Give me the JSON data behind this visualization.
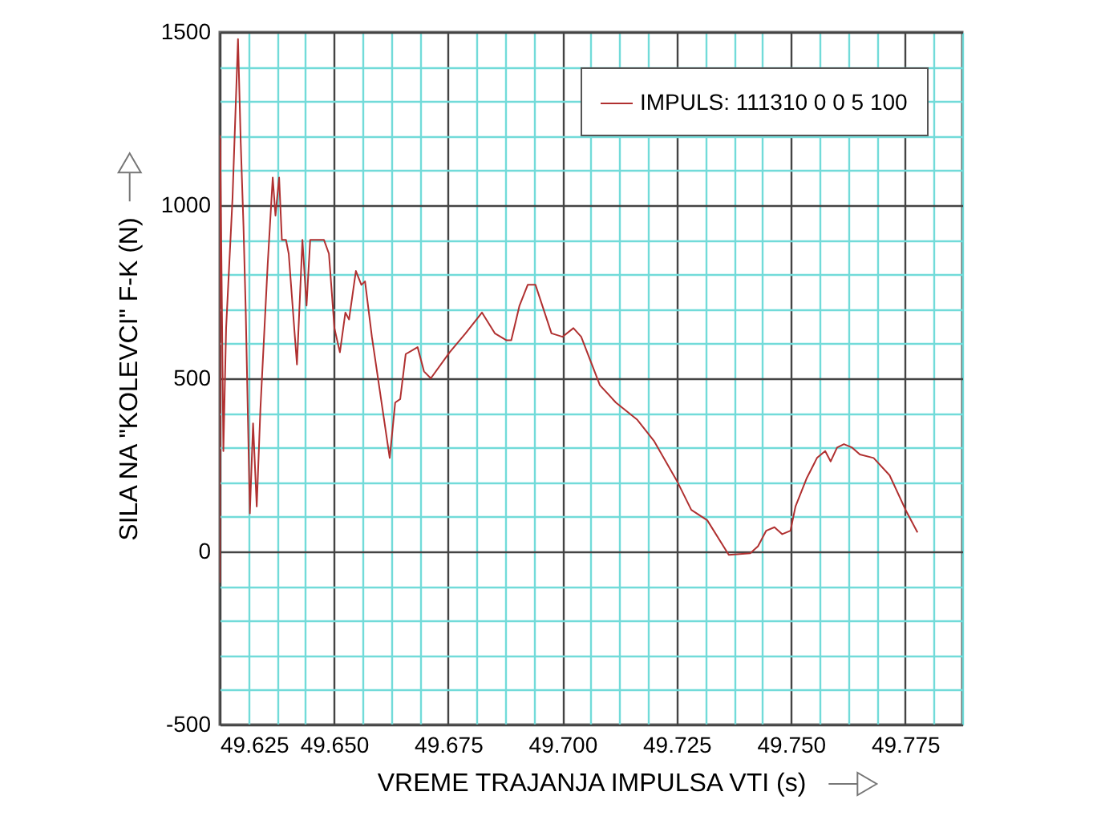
{
  "chart_data": {
    "type": "line",
    "xlabel": "VREME TRAJANJA IMPULSA VTI (s)",
    "ylabel": "SILA NA \"KOLEVCI\" F-K (N)",
    "xlim": [
      49.625,
      49.7875
    ],
    "ylim": [
      -500,
      1500
    ],
    "xticks": [
      49.625,
      {
        "value": 49.63125,
        "label": null
      },
      {
        "value": 49.6375,
        "label": null
      },
      {
        "value": 49.64375,
        "label": null
      },
      {
        "value": 49.65,
        "label": "49.650"
      },
      {
        "value": 49.65625,
        "label": null
      },
      {
        "value": 49.6625,
        "label": null
      },
      {
        "value": 49.66875,
        "label": null
      },
      49.675,
      {
        "value": 49.68125,
        "label": null
      },
      {
        "value": 49.6875,
        "label": null
      },
      {
        "value": 49.69375,
        "label": null
      },
      {
        "value": 49.7,
        "label": "49.700"
      },
      {
        "value": 49.70625,
        "label": null
      },
      {
        "value": 49.7125,
        "label": null
      },
      {
        "value": 49.71875,
        "label": null
      },
      49.725,
      {
        "value": 49.73125,
        "label": null
      },
      {
        "value": 49.7375,
        "label": null
      },
      {
        "value": 49.74375,
        "label": null
      },
      {
        "value": 49.75,
        "label": "49.750"
      },
      {
        "value": 49.75625,
        "label": null
      },
      {
        "value": 49.7625,
        "label": null
      },
      {
        "value": 49.76875,
        "label": null
      },
      49.775,
      {
        "value": 49.78125,
        "label": null
      },
      {
        "value": 49.7875,
        "label": null
      }
    ],
    "yticks": [
      -500,
      {
        "value": -400,
        "label": null
      },
      {
        "value": -300,
        "label": null
      },
      {
        "value": -200,
        "label": null
      },
      {
        "value": -100,
        "label": null
      },
      0,
      {
        "value": 100,
        "label": null
      },
      {
        "value": 200,
        "label": null
      },
      {
        "value": 300,
        "label": null
      },
      {
        "value": 400,
        "label": null
      },
      500,
      {
        "value": 600,
        "label": null
      },
      {
        "value": 700,
        "label": null
      },
      {
        "value": 800,
        "label": null
      },
      {
        "value": 900,
        "label": null
      },
      1000,
      {
        "value": 1100,
        "label": null
      },
      {
        "value": 1200,
        "label": null
      },
      {
        "value": 1300,
        "label": null
      },
      {
        "value": 1400,
        "label": null
      },
      1500
    ],
    "grid": true,
    "legend": "top right",
    "series": [
      {
        "name": "IMPULS: 111310 0 0 5 100",
        "color": "#b03030",
        "x": [
          49.625,
          49.6251,
          49.6258,
          49.6264,
          49.6278,
          49.629,
          49.6296,
          49.6302,
          49.6307,
          49.6316,
          49.6323,
          49.6331,
          49.6339,
          49.6355,
          49.6366,
          49.6372,
          49.638,
          49.6386,
          49.6395,
          49.6401,
          49.6419,
          49.6431,
          49.644,
          49.6448,
          49.6478,
          49.6489,
          49.6501,
          49.6513,
          49.6525,
          49.6533,
          49.6548,
          49.656,
          49.6568,
          49.6583,
          49.6622,
          49.6634,
          49.6645,
          49.6657,
          49.6683,
          49.6697,
          49.6712,
          49.6753,
          49.6788,
          49.6824,
          49.6852,
          49.6877,
          49.6888,
          49.6906,
          49.6924,
          49.6941,
          49.6976,
          49.7,
          49.7024,
          49.7041,
          49.7082,
          49.7117,
          49.7164,
          49.72,
          49.7252,
          49.7282,
          49.7317,
          49.7364,
          49.7411,
          49.7428,
          49.7446,
          49.7464,
          49.7481,
          49.7499,
          49.751,
          49.7534,
          49.7557,
          49.7575,
          49.7587,
          49.7601,
          49.7616,
          49.7634,
          49.7651,
          49.7681,
          49.7716,
          49.7751,
          49.7777
        ],
        "values": [
          -90,
          1200,
          290,
          645,
          1020,
          1480,
          1180,
          940,
          690,
          110,
          370,
          130,
          410,
          830,
          1080,
          970,
          1080,
          900,
          900,
          860,
          540,
          900,
          710,
          900,
          900,
          860,
          645,
          575,
          690,
          670,
          810,
          770,
          780,
          620,
          270,
          430,
          440,
          570,
          590,
          520,
          500,
          575,
          630,
          690,
          630,
          610,
          610,
          710,
          770,
          770,
          630,
          620,
          645,
          620,
          480,
          430,
          380,
          320,
          200,
          120,
          90,
          -10,
          -5,
          15,
          60,
          70,
          50,
          60,
          130,
          210,
          270,
          290,
          260,
          300,
          310,
          300,
          280,
          270,
          220,
          120,
          55
        ]
      }
    ]
  }
}
